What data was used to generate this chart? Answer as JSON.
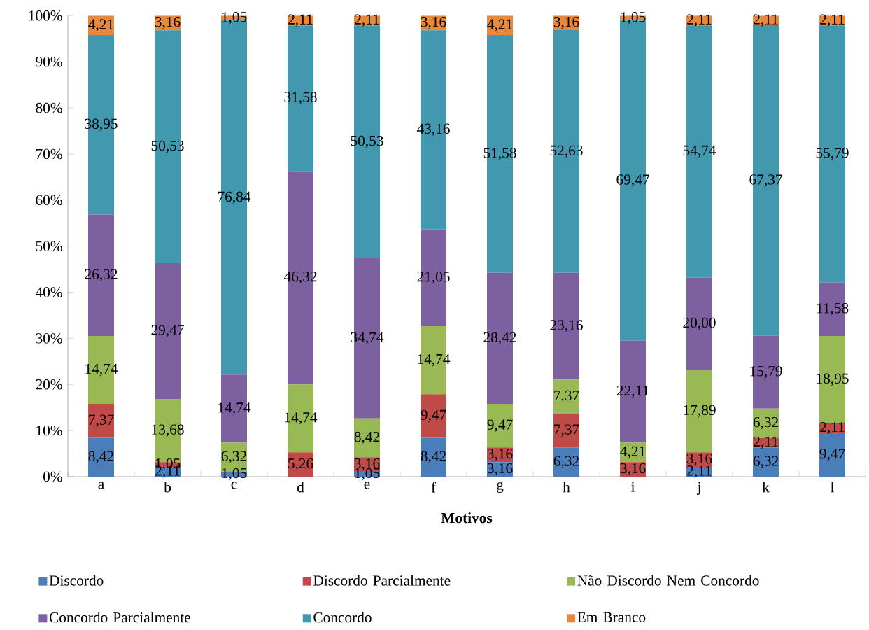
{
  "chart_data": {
    "type": "bar",
    "stacked": true,
    "xlabel": "Motivos",
    "legend": "bottom",
    "categories": [
      "a",
      "b",
      "c",
      "d",
      "e",
      "f",
      "g",
      "h",
      "i",
      "j",
      "k",
      "l"
    ],
    "ylim": [
      0,
      100
    ],
    "yticks": [
      {
        "value": 0,
        "label": "0%"
      },
      {
        "value": 10,
        "label": "10%"
      },
      {
        "value": 20,
        "label": "20%"
      },
      {
        "value": 30,
        "label": "30%"
      },
      {
        "value": 40,
        "label": "40%"
      },
      {
        "value": 50,
        "label": "50%"
      },
      {
        "value": 60,
        "label": "60%"
      },
      {
        "value": 70,
        "label": "70%"
      },
      {
        "value": 80,
        "label": "80%"
      },
      {
        "value": 90,
        "label": "90%"
      },
      {
        "value": 100,
        "label": "100%"
      }
    ],
    "series": [
      {
        "name": "Discordo",
        "color": "#4a7ebb",
        "values": [
          8.42,
          2.11,
          1.05,
          0,
          1.05,
          8.42,
          3.16,
          6.32,
          0,
          2.11,
          6.32,
          9.47
        ],
        "value_labels": [
          "8,42",
          "2,11",
          "1,05",
          null,
          "1,05",
          "8,42",
          "3,16",
          "6,32",
          null,
          "2,11",
          "6,32",
          "9,47"
        ]
      },
      {
        "name": "Discordo Parcialmente",
        "color": "#be4b48",
        "values": [
          7.37,
          1.05,
          0,
          5.26,
          3.16,
          9.47,
          3.16,
          7.37,
          3.16,
          3.16,
          2.11,
          2.11
        ],
        "value_labels": [
          "7,37",
          "1,05",
          null,
          "5,26",
          "3,16",
          "9,47",
          "3,16",
          "7,37",
          "3,16",
          "3,16",
          "2,11",
          "2,11"
        ]
      },
      {
        "name": "Não Discordo Nem Concordo",
        "color": "#98b954",
        "values": [
          14.74,
          13.68,
          6.32,
          14.74,
          8.42,
          14.74,
          9.47,
          7.37,
          4.21,
          17.89,
          6.32,
          18.95
        ],
        "value_labels": [
          "14,74",
          "13,68",
          "6,32",
          "14,74",
          "8,42",
          "14,74",
          "9,47",
          "7,37",
          "4,21",
          "17,89",
          "6,32",
          "18,95"
        ]
      },
      {
        "name": "Concordo Parcialmente",
        "color": "#7d60a0",
        "values": [
          26.32,
          29.47,
          14.74,
          46.32,
          34.74,
          21.05,
          28.42,
          23.16,
          22.11,
          20.0,
          15.79,
          11.58
        ],
        "value_labels": [
          "26,32",
          "29,47",
          "14,74",
          "46,32",
          "34,74",
          "21,05",
          "28,42",
          "23,16",
          "22,11",
          "20,00",
          "15,79",
          "11,58"
        ]
      },
      {
        "name": "Concordo",
        "color": "#4198af",
        "values": [
          38.95,
          50.53,
          76.84,
          31.58,
          50.53,
          43.16,
          51.58,
          52.63,
          69.47,
          54.74,
          67.37,
          55.79
        ],
        "value_labels": [
          "38,95",
          "50,53",
          "76,84",
          "31,58",
          "50,53",
          "43,16",
          "51,58",
          "52,63",
          "69,47",
          "54,74",
          "67,37",
          "55,79"
        ]
      },
      {
        "name": "Em Branco",
        "color": "#e8883a",
        "values": [
          4.21,
          3.16,
          1.05,
          2.11,
          2.11,
          3.16,
          4.21,
          3.16,
          1.05,
          2.11,
          2.11,
          2.11
        ],
        "value_labels": [
          "4,21",
          "3,16",
          "1,05",
          "2,11",
          "2,11",
          "3,16",
          "4,21",
          "3,16",
          "1,05",
          "2,11",
          "2,11",
          "2,11"
        ]
      }
    ]
  }
}
